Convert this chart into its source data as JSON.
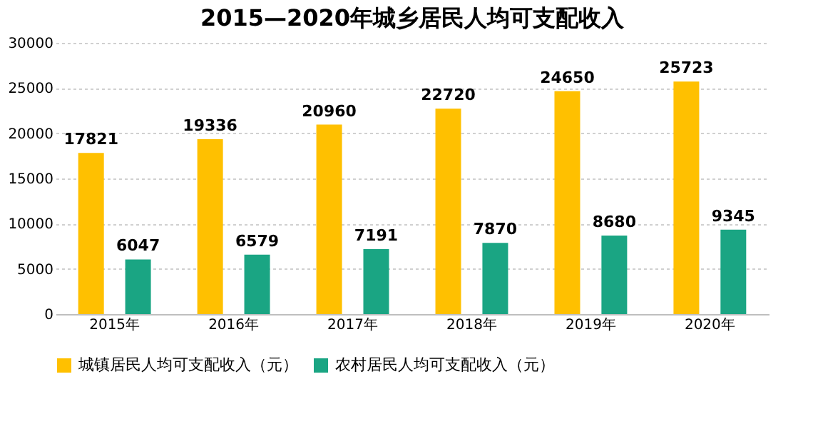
{
  "chart_data": {
    "type": "bar",
    "title": "2015—2020年城乡居民人均可支配收入",
    "categories": [
      "2015年",
      "2016年",
      "2017年",
      "2018年",
      "2019年",
      "2020年"
    ],
    "series": [
      {
        "name": "城镇居民人均可支配收入（元）",
        "color": "#ffc000",
        "values": [
          17821,
          19336,
          20960,
          22720,
          24650,
          25723
        ]
      },
      {
        "name": "农村居民人均可支配收入（元）",
        "color": "#1aa583",
        "values": [
          6047,
          6579,
          7191,
          7870,
          8680,
          9345
        ]
      }
    ],
    "ylim": [
      0,
      30000
    ],
    "yticks": [
      0,
      5000,
      10000,
      15000,
      20000,
      25000,
      30000
    ],
    "grid": "y",
    "legend": "bottom",
    "data_labels": true
  }
}
